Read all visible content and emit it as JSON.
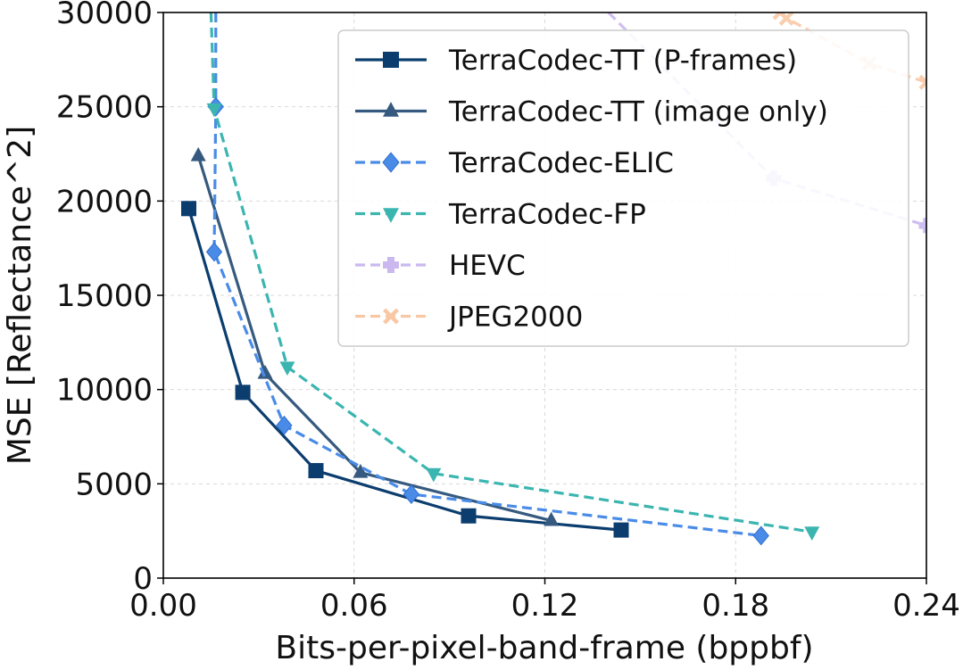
{
  "chart_data": {
    "type": "line",
    "title": "",
    "xlabel": "Bits-per-pixel-band-frame (bppbf)",
    "ylabel": "MSE [Reflectance^2]",
    "xlim": [
      0.0,
      0.24
    ],
    "ylim": [
      0,
      30000
    ],
    "xticks": [
      0.0,
      0.06,
      0.12,
      0.18,
      0.24
    ],
    "xtick_labels": [
      "0.00",
      "0.06",
      "0.12",
      "0.18",
      "0.24"
    ],
    "yticks": [
      0,
      5000,
      10000,
      15000,
      20000,
      25000,
      30000
    ],
    "ytick_labels": [
      "0",
      "5000",
      "10000",
      "15000",
      "20000",
      "25000",
      "30000"
    ],
    "grid": true,
    "legend_position": "top-right",
    "series": [
      {
        "name": "TerraCodec-TT (P-frames)",
        "color": "#0b3d6e",
        "linestyle": "solid",
        "marker": "square",
        "x": [
          0.008,
          0.025,
          0.048,
          0.096,
          0.144
        ],
        "y": [
          19600,
          9850,
          5700,
          3300,
          2550
        ]
      },
      {
        "name": "TerraCodec-TT (image only)",
        "color": "#365a7f",
        "linestyle": "solid",
        "marker": "triangle-up",
        "x": [
          0.011,
          0.032,
          0.062,
          0.122
        ],
        "y": [
          22400,
          10850,
          5600,
          3050
        ]
      },
      {
        "name": "TerraCodec-ELIC",
        "color": "#4a8be8",
        "linestyle": "dashed",
        "marker": "diamond",
        "x": [
          0.0165,
          0.0165,
          0.016,
          0.038,
          0.078,
          0.188
        ],
        "y": [
          30000,
          25000,
          17300,
          8100,
          4450,
          2250
        ]
      },
      {
        "name": "TerraCodec-FP",
        "color": "#3bb5b0",
        "linestyle": "dashed",
        "marker": "triangle-down",
        "x": [
          0.015,
          0.016,
          0.039,
          0.085,
          0.204
        ],
        "y": [
          30000,
          24900,
          11200,
          5550,
          2450
        ]
      },
      {
        "name": "HEVC",
        "color": "#a88ae6",
        "linestyle": "dashed",
        "marker": "plus",
        "x": [
          0.14,
          0.192,
          0.24
        ],
        "y": [
          30000,
          21200,
          18700
        ]
      },
      {
        "name": "JPEG2000",
        "color": "#f5a56b",
        "linestyle": "dashed",
        "marker": "x",
        "x": [
          0.194,
          0.196,
          0.222,
          0.24
        ],
        "y": [
          30000,
          29700,
          27300,
          26300
        ]
      }
    ]
  }
}
